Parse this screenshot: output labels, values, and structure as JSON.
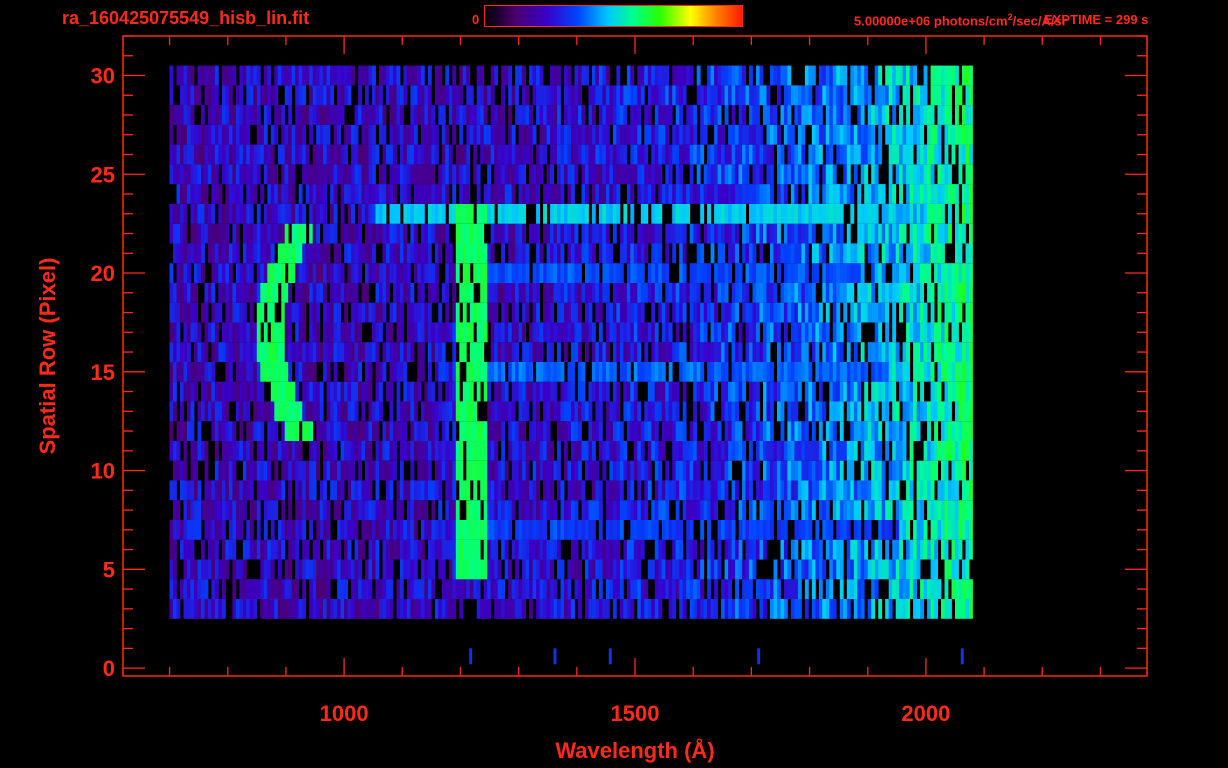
{
  "header": {
    "file_name": "ra_160425075549_hisb_lin.fit",
    "colorbar_min": "0",
    "colorbar_max": "5.00000e+06 photons/cm",
    "colorbar_unit_exp": "2",
    "colorbar_unit_rest": "/sec/A/sr",
    "exptime": "EXPTIME = 299 s"
  },
  "colors": {
    "axis": "#ff2a1a",
    "background": "#000000",
    "colormap": [
      "#000000",
      "#4b006e",
      "#3a00c8",
      "#0044ff",
      "#00c8ff",
      "#00ff88",
      "#28ff00",
      "#ffff00",
      "#ff8000",
      "#ff1a00"
    ]
  },
  "chart_data": {
    "type": "heatmap",
    "xlabel": "Wavelength (Å)",
    "ylabel": "Spatial Row (Pixel)",
    "xlim": [
      620,
      2380
    ],
    "ylim": [
      -0.4,
      32
    ],
    "x_ticks": [
      1000,
      1500,
      2000
    ],
    "y_ticks": [
      0,
      5,
      10,
      15,
      20,
      25,
      30
    ],
    "x_minor_step": 100,
    "y_minor_step": 1,
    "data_region": {
      "x": [
        700,
        2080
      ],
      "rows": [
        3,
        30
      ]
    },
    "colorbar": {
      "min": 0,
      "max": 5000000,
      "unit": "photons/cm2/sec/A/sr"
    },
    "features": [
      {
        "name": "Ly-alpha 1216",
        "x": 1216,
        "rows": [
          5,
          23
        ],
        "level": 0.55
      },
      {
        "name": "airglow band row 23",
        "x": [
          1050,
          1920
        ],
        "rows": [
          23,
          23
        ],
        "level": 0.42
      },
      {
        "name": "band row 20",
        "x": [
          1200,
          1880
        ],
        "rows": [
          20,
          20
        ],
        "level": 0.3
      },
      {
        "name": "band row 15",
        "x": [
          1200,
          1920
        ],
        "rows": [
          15,
          15
        ],
        "level": 0.32
      },
      {
        "name": "band row 7",
        "x": [
          1200,
          1950
        ],
        "rows": [
          7,
          7
        ],
        "level": 0.28
      },
      {
        "name": "arc near 870",
        "x": 870,
        "rows": [
          12,
          22
        ],
        "level": 0.55
      }
    ]
  }
}
